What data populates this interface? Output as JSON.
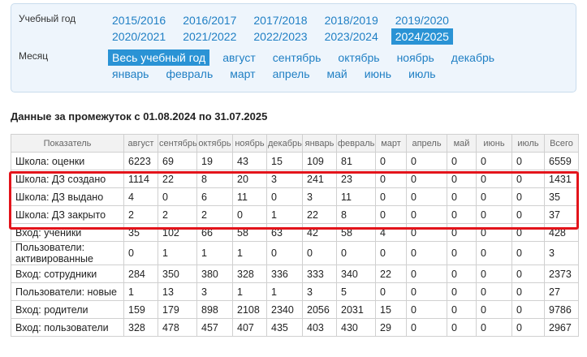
{
  "filters": {
    "year": {
      "label": "Учебный год",
      "options": [
        "2015/2016",
        "2016/2017",
        "2017/2018",
        "2018/2019",
        "2019/2020",
        "2020/2021",
        "2021/2022",
        "2022/2023",
        "2023/2024",
        "2024/2025"
      ],
      "selected": 9
    },
    "month": {
      "label": "Месяц",
      "options": [
        "Весь учебный год",
        "август",
        "сентябрь",
        "октябрь",
        "ноябрь",
        "декабрь",
        "январь",
        "февраль",
        "март",
        "апрель",
        "май",
        "июнь",
        "июль"
      ],
      "selected": 0
    }
  },
  "heading": "Данные за промежуток с 01.08.2024 по 31.07.2025",
  "table": {
    "columns": [
      "Показатель",
      "август",
      "сентябрь",
      "октябрь",
      "ноябрь",
      "декабрь",
      "январь",
      "февраль",
      "март",
      "апрель",
      "май",
      "июнь",
      "июль",
      "Всего"
    ],
    "rows": [
      {
        "label": "Школа: оценки",
        "values": [
          6223,
          69,
          19,
          43,
          15,
          109,
          81,
          0,
          0,
          0,
          0,
          0,
          6559
        ]
      },
      {
        "label": "Школа: ДЗ создано",
        "values": [
          1114,
          22,
          8,
          20,
          3,
          241,
          23,
          0,
          0,
          0,
          0,
          0,
          1431
        ]
      },
      {
        "label": "Школа: ДЗ выдано",
        "values": [
          4,
          0,
          6,
          11,
          0,
          3,
          11,
          0,
          0,
          0,
          0,
          0,
          35
        ]
      },
      {
        "label": "Школа: ДЗ закрыто",
        "values": [
          2,
          2,
          2,
          0,
          1,
          22,
          8,
          0,
          0,
          0,
          0,
          0,
          37
        ]
      },
      {
        "label": "Вход: ученики",
        "values": [
          35,
          102,
          66,
          58,
          63,
          42,
          58,
          4,
          0,
          0,
          0,
          0,
          428
        ]
      },
      {
        "label": "Пользователи: активированные",
        "values": [
          0,
          1,
          1,
          1,
          0,
          0,
          0,
          0,
          0,
          0,
          0,
          0,
          3
        ]
      },
      {
        "label": "Вход: сотрудники",
        "values": [
          284,
          350,
          380,
          328,
          336,
          333,
          340,
          22,
          0,
          0,
          0,
          0,
          2373
        ]
      },
      {
        "label": "Пользователи: новые",
        "values": [
          1,
          13,
          3,
          1,
          1,
          3,
          5,
          0,
          0,
          0,
          0,
          0,
          27
        ]
      },
      {
        "label": "Вход: родители",
        "values": [
          159,
          179,
          898,
          2108,
          2340,
          2056,
          2031,
          15,
          0,
          0,
          0,
          0,
          9786
        ]
      },
      {
        "label": "Вход: пользователи",
        "values": [
          328,
          478,
          457,
          407,
          435,
          403,
          430,
          29,
          0,
          0,
          0,
          0,
          2967
        ]
      }
    ]
  }
}
